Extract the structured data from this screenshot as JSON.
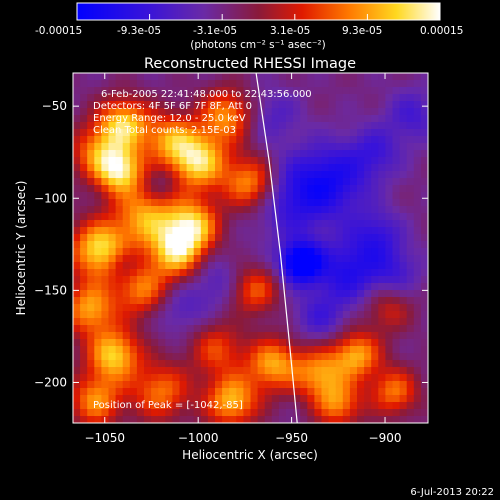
{
  "colorbar": {
    "tick_labels": [
      "-0.00015",
      "-9.3e-05",
      "-3.1e-05",
      "3.1e-05",
      "9.3e-05",
      "0.00015"
    ],
    "units": "(photons cm⁻² s⁻¹ asec⁻²)",
    "range": [
      -0.00015,
      0.00015
    ],
    "colormap": "blue-purple-red-yellow-white"
  },
  "chart_data": {
    "type": "heatmap",
    "title": "Reconstructed RHESSI Image",
    "xlabel": "Heliocentric X (arcsec)",
    "ylabel": "Heliocentric Y (arcsec)",
    "xlim": [
      -1067,
      -877
    ],
    "ylim": [
      -222,
      -32
    ],
    "x_ticks": [
      -1050,
      -1000,
      -950,
      -900
    ],
    "y_ticks": [
      -50,
      -100,
      -150,
      -200
    ],
    "x_tick_labels": [
      "−1050",
      "−1000",
      "−950",
      "−900"
    ],
    "y_tick_labels": [
      "−50",
      "−100",
      "−150",
      "−200"
    ],
    "limb_curve": [
      [
        -969,
        -32
      ],
      [
        -962,
        -80
      ],
      [
        -956,
        -130
      ],
      [
        -951,
        -180
      ],
      [
        -947,
        -222
      ]
    ],
    "peak": [
      -1042,
      -85
    ],
    "annotations": [
      "6-Feb-2005 22:41:48.000 to 22:43:56.000",
      "Detectors: 4F 5F 6F 7F 8F, Att 0",
      "Energy Range: 12.0 - 25.0 keV",
      "Clean   Total counts: 2.15E-03"
    ],
    "peak_label": "Position of Peak = [-1042,-85]",
    "blobs": [
      {
        "x": -1040,
        "y": -60,
        "v": 0.00014,
        "s": 10
      },
      {
        "x": -1015,
        "y": -68,
        "v": 0.0001,
        "s": 10
      },
      {
        "x": -1000,
        "y": -80,
        "v": 0.00015,
        "s": 11
      },
      {
        "x": -1055,
        "y": -75,
        "v": 9e-05,
        "s": 10
      },
      {
        "x": -985,
        "y": -55,
        "v": 0.00011,
        "s": 10
      },
      {
        "x": -972,
        "y": -92,
        "v": 0.00012,
        "s": 10
      },
      {
        "x": -1042,
        "y": -85,
        "v": 0.00015,
        "s": 9
      },
      {
        "x": -1028,
        "y": -110,
        "v": 0.00012,
        "s": 12
      },
      {
        "x": -1003,
        "y": -115,
        "v": 0.00014,
        "s": 10
      },
      {
        "x": -1012,
        "y": -130,
        "v": 0.00013,
        "s": 10
      },
      {
        "x": -1053,
        "y": -128,
        "v": 0.00015,
        "s": 11
      },
      {
        "x": -1030,
        "y": -150,
        "v": 0.0001,
        "s": 10
      },
      {
        "x": -1058,
        "y": -160,
        "v": 0.00012,
        "s": 10
      },
      {
        "x": -1045,
        "y": -185,
        "v": 0.00014,
        "s": 10
      },
      {
        "x": -1055,
        "y": -210,
        "v": 0.00011,
        "s": 10
      },
      {
        "x": -1020,
        "y": -205,
        "v": 0.0001,
        "s": 11
      },
      {
        "x": -990,
        "y": -182,
        "v": 8e-05,
        "s": 10
      },
      {
        "x": -982,
        "y": -210,
        "v": 0.00013,
        "s": 10
      },
      {
        "x": -970,
        "y": -150,
        "v": 9e-05,
        "s": 9
      },
      {
        "x": -960,
        "y": -190,
        "v": 0.00012,
        "s": 10
      },
      {
        "x": -935,
        "y": -195,
        "v": 0.00011,
        "s": 10
      },
      {
        "x": -915,
        "y": -185,
        "v": 0.00012,
        "s": 9
      },
      {
        "x": -925,
        "y": -212,
        "v": 0.0001,
        "s": 9
      },
      {
        "x": -895,
        "y": -205,
        "v": 0.0001,
        "s": 9
      },
      {
        "x": -898,
        "y": -160,
        "v": 6e-05,
        "s": 9
      },
      {
        "x": -950,
        "y": -100,
        "v": -7e-05,
        "s": 15
      },
      {
        "x": -928,
        "y": -90,
        "v": -8e-05,
        "s": 14
      },
      {
        "x": -945,
        "y": -135,
        "v": -0.00015,
        "s": 8
      },
      {
        "x": -920,
        "y": -140,
        "v": -8e-05,
        "s": 12
      },
      {
        "x": -905,
        "y": -120,
        "v": -6e-05,
        "s": 10
      },
      {
        "x": -905,
        "y": -75,
        "v": -5e-05,
        "s": 10
      },
      {
        "x": -885,
        "y": -55,
        "v": -5e-05,
        "s": 10
      },
      {
        "x": -960,
        "y": -55,
        "v": -4e-05,
        "s": 10
      },
      {
        "x": -895,
        "y": -140,
        "v": -5e-05,
        "s": 10
      },
      {
        "x": -935,
        "y": -165,
        "v": -5e-05,
        "s": 10
      },
      {
        "x": -1010,
        "y": -160,
        "v": -4e-05,
        "s": 10
      },
      {
        "x": -990,
        "y": -145,
        "v": -4e-05,
        "s": 10
      },
      {
        "x": -1040,
        "y": -135,
        "v": -4e-05,
        "s": 6
      },
      {
        "x": -1020,
        "y": -92,
        "v": -4e-05,
        "s": 7
      }
    ]
  },
  "timestamp": "6-Jul-2013 20:22"
}
